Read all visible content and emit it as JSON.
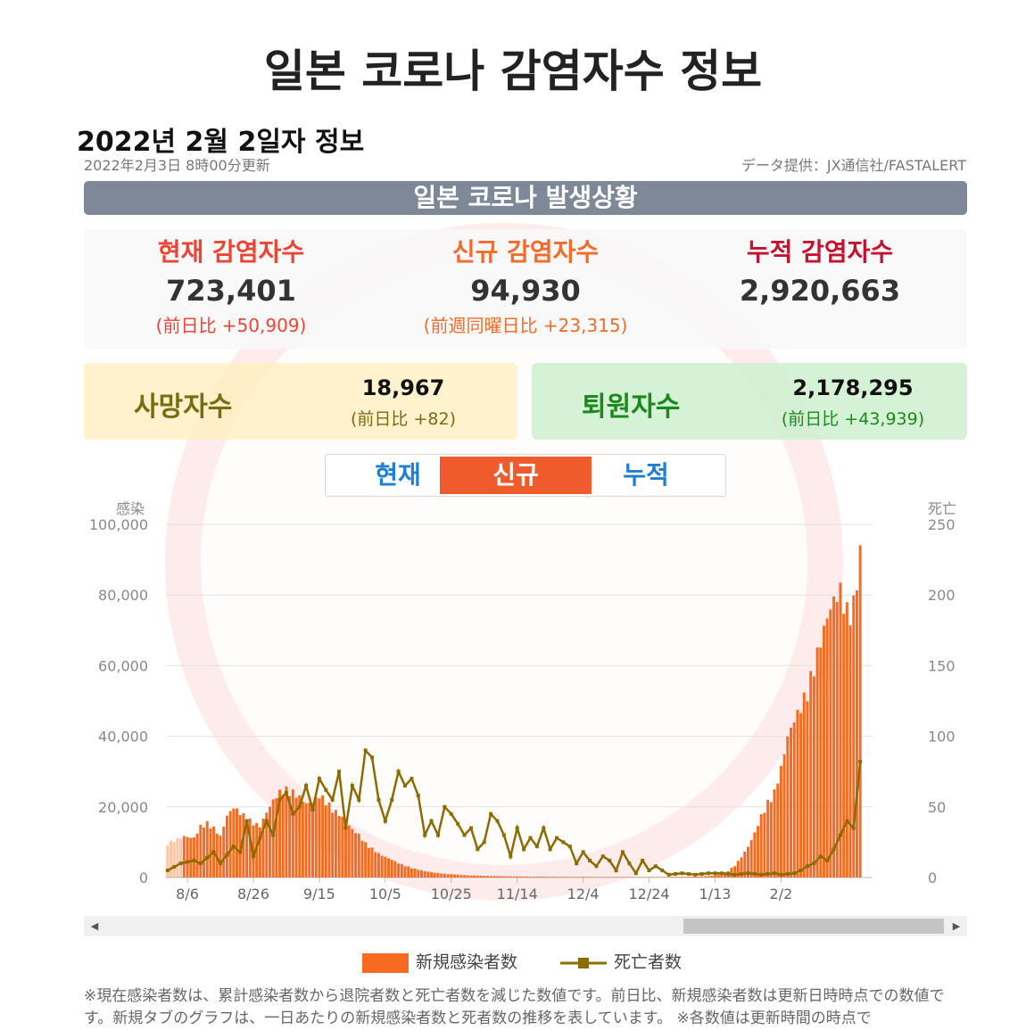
{
  "page": {
    "title": "일본 코로나 감염자수 정보",
    "date_heading": "2022년 2월 2일자 정보",
    "updated": "2022年2月3日 8時00分更新",
    "credit": "データ提供：JX通信社/FASTALERT"
  },
  "banner": "일본 코로나 발생상황",
  "stats": {
    "current": {
      "label": "현재 감염자수",
      "value": "723,401",
      "sub": "(前日比 +50,909)",
      "color": "#ee4433"
    },
    "new": {
      "label": "신규 감염자수",
      "value": "94,930",
      "sub": "(前週同曜日比 +23,315)",
      "color": "#f26b2a"
    },
    "total": {
      "label": "누적 감염자수",
      "value": "2,920,663",
      "sub": "",
      "color": "#c4132e"
    }
  },
  "deaths": {
    "label": "사망자수",
    "value": "18,967",
    "sub": "(前日比 +82)",
    "color": "#7a6a10"
  },
  "recovered": {
    "label": "퇴원자수",
    "value": "2,178,295",
    "sub": "(前日比 +43,939)",
    "color": "#1a8a1a"
  },
  "tabs": [
    {
      "label": "현재",
      "active": false
    },
    {
      "label": "신규",
      "active": true
    },
    {
      "label": "누적",
      "active": false
    }
  ],
  "chart_data": {
    "type": "bar",
    "title": "",
    "left_axis": {
      "label": "感染",
      "ticks": [
        "100,000",
        "80,000",
        "60,000",
        "40,000",
        "20,000",
        "0"
      ],
      "range": [
        0,
        100000
      ]
    },
    "right_axis": {
      "label": "死亡",
      "ticks": [
        "250",
        "200",
        "150",
        "100",
        "50",
        "0"
      ],
      "range": [
        0,
        250
      ]
    },
    "x_ticks": [
      "8/6",
      "8/26",
      "9/15",
      "10/5",
      "10/25",
      "11/14",
      "12/4",
      "12/24",
      "1/13",
      "2/2"
    ],
    "series": [
      {
        "name": "新規感染者数",
        "kind": "bar",
        "color": "#f86a1f",
        "keypoints": [
          [
            0,
            10000
          ],
          [
            5,
            12000
          ],
          [
            8,
            11500
          ],
          [
            10,
            15000
          ],
          [
            12,
            16000
          ],
          [
            14,
            14500
          ],
          [
            16,
            12000
          ],
          [
            18,
            18000
          ],
          [
            20,
            20500
          ],
          [
            22,
            19000
          ],
          [
            24,
            17500
          ],
          [
            26,
            16000
          ],
          [
            28,
            15000
          ],
          [
            30,
            19000
          ],
          [
            32,
            22500
          ],
          [
            34,
            25000
          ],
          [
            36,
            25800
          ],
          [
            38,
            25000
          ],
          [
            40,
            23500
          ],
          [
            42,
            21500
          ],
          [
            44,
            22000
          ],
          [
            46,
            24000
          ],
          [
            48,
            22500
          ],
          [
            50,
            20000
          ],
          [
            52,
            18500
          ],
          [
            54,
            16500
          ],
          [
            56,
            14000
          ],
          [
            58,
            12500
          ],
          [
            60,
            10000
          ],
          [
            62,
            8500
          ],
          [
            64,
            7000
          ],
          [
            66,
            6000
          ],
          [
            68,
            5200
          ],
          [
            70,
            4200
          ],
          [
            72,
            3500
          ],
          [
            74,
            2800
          ],
          [
            76,
            2300
          ],
          [
            78,
            1900
          ],
          [
            80,
            1500
          ],
          [
            84,
            1100
          ],
          [
            88,
            800
          ],
          [
            92,
            600
          ],
          [
            100,
            400
          ],
          [
            110,
            250
          ],
          [
            130,
            150
          ],
          [
            150,
            150
          ],
          [
            160,
            250
          ],
          [
            165,
            500
          ],
          [
            168,
            1000
          ],
          [
            170,
            2000
          ],
          [
            172,
            3500
          ],
          [
            174,
            6000
          ],
          [
            176,
            9000
          ],
          [
            178,
            13000
          ],
          [
            180,
            18000
          ],
          [
            182,
            22000
          ],
          [
            184,
            25000
          ],
          [
            186,
            32000
          ],
          [
            188,
            41000
          ],
          [
            190,
            46000
          ],
          [
            192,
            50000
          ],
          [
            194,
            55000
          ],
          [
            196,
            62000
          ],
          [
            198,
            69000
          ],
          [
            200,
            76000
          ],
          [
            202,
            81000
          ],
          [
            204,
            84000
          ],
          [
            206,
            78000
          ],
          [
            208,
            80000
          ],
          [
            210,
            94930
          ]
        ]
      },
      {
        "name": "死亡者数",
        "kind": "line",
        "color": "#8c6b00",
        "keypoints": [
          [
            0,
            5
          ],
          [
            4,
            10
          ],
          [
            8,
            12
          ],
          [
            10,
            10
          ],
          [
            14,
            18
          ],
          [
            16,
            10
          ],
          [
            20,
            22
          ],
          [
            22,
            18
          ],
          [
            24,
            40
          ],
          [
            26,
            15
          ],
          [
            28,
            28
          ],
          [
            30,
            40
          ],
          [
            32,
            30
          ],
          [
            34,
            55
          ],
          [
            36,
            60
          ],
          [
            38,
            45
          ],
          [
            40,
            50
          ],
          [
            42,
            65
          ],
          [
            44,
            48
          ],
          [
            46,
            70
          ],
          [
            48,
            62
          ],
          [
            50,
            55
          ],
          [
            52,
            75
          ],
          [
            54,
            35
          ],
          [
            56,
            65
          ],
          [
            58,
            55
          ],
          [
            60,
            90
          ],
          [
            62,
            85
          ],
          [
            64,
            55
          ],
          [
            66,
            40
          ],
          [
            68,
            55
          ],
          [
            70,
            75
          ],
          [
            72,
            65
          ],
          [
            74,
            70
          ],
          [
            76,
            58
          ],
          [
            78,
            30
          ],
          [
            80,
            40
          ],
          [
            82,
            30
          ],
          [
            84,
            50
          ],
          [
            86,
            45
          ],
          [
            88,
            38
          ],
          [
            90,
            30
          ],
          [
            92,
            35
          ],
          [
            94,
            20
          ],
          [
            96,
            25
          ],
          [
            98,
            45
          ],
          [
            100,
            40
          ],
          [
            102,
            30
          ],
          [
            104,
            15
          ],
          [
            106,
            35
          ],
          [
            108,
            20
          ],
          [
            110,
            28
          ],
          [
            112,
            22
          ],
          [
            114,
            35
          ],
          [
            116,
            20
          ],
          [
            118,
            28
          ],
          [
            120,
            25
          ],
          [
            122,
            22
          ],
          [
            124,
            10
          ],
          [
            126,
            18
          ],
          [
            128,
            12
          ],
          [
            130,
            8
          ],
          [
            132,
            15
          ],
          [
            134,
            12
          ],
          [
            136,
            5
          ],
          [
            138,
            18
          ],
          [
            140,
            10
          ],
          [
            142,
            3
          ],
          [
            144,
            12
          ],
          [
            146,
            5
          ],
          [
            148,
            8
          ],
          [
            150,
            5
          ],
          [
            152,
            2
          ],
          [
            156,
            3
          ],
          [
            160,
            2
          ],
          [
            164,
            3
          ],
          [
            168,
            3
          ],
          [
            172,
            2
          ],
          [
            176,
            3
          ],
          [
            180,
            2
          ],
          [
            184,
            3
          ],
          [
            186,
            2
          ],
          [
            190,
            3
          ],
          [
            192,
            5
          ],
          [
            194,
            8
          ],
          [
            196,
            10
          ],
          [
            198,
            15
          ],
          [
            200,
            12
          ],
          [
            202,
            20
          ],
          [
            204,
            30
          ],
          [
            206,
            40
          ],
          [
            208,
            35
          ],
          [
            210,
            82
          ]
        ]
      }
    ],
    "days": 211,
    "legend": [
      "新規感染者数",
      "死亡者数"
    ],
    "legend_position": "bottom"
  },
  "footnote": "※現在感染者数は、累計感染者数から退院者数と死亡者数を減じた数値です。前日比、新規感染者数は更新日時時点での数値です。新規タブのグラフは、一日あたりの新規感染者数と死者数の推移を表しています。 ※各数値は更新時間の時点で"
}
